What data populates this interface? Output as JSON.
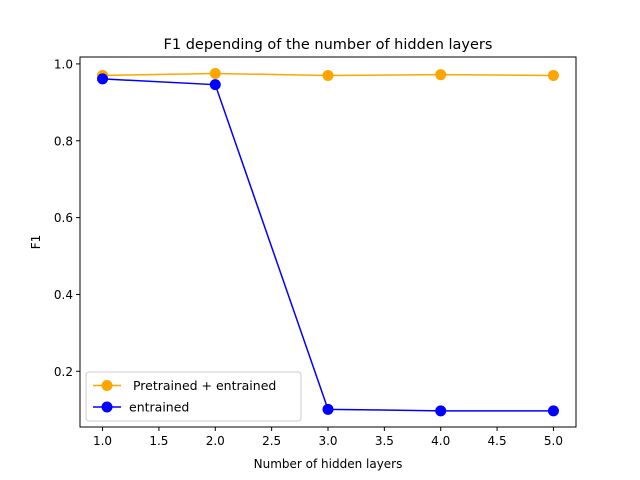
{
  "chart_data": {
    "type": "line",
    "title": "F1 depending of the number of hidden layers",
    "xlabel": "Number of hidden layers",
    "ylabel": "F1",
    "xlim": [
      0.8,
      5.2
    ],
    "ylim": [
      0.055,
      1.018
    ],
    "xticks": [
      1.0,
      1.5,
      2.0,
      2.5,
      3.0,
      3.5,
      4.0,
      4.5,
      5.0
    ],
    "xtick_labels": [
      "1.0",
      "1.5",
      "2.0",
      "2.5",
      "3.0",
      "3.5",
      "4.0",
      "4.5",
      "5.0"
    ],
    "yticks": [
      0.2,
      0.4,
      0.6,
      0.8,
      1.0
    ],
    "ytick_labels": [
      "0.2",
      "0.4",
      "0.6",
      "0.8",
      "1.0"
    ],
    "grid": false,
    "legend_position": "lower-left",
    "x": [
      1,
      2,
      3,
      4,
      5
    ],
    "series": [
      {
        "name": " Pretrained + entrained",
        "color": "#ffa500",
        "marker": "circle",
        "values": [
          0.97,
          0.975,
          0.97,
          0.972,
          0.97
        ]
      },
      {
        "name": "entrained",
        "color": "#0000ff",
        "marker": "circle",
        "values": [
          0.961,
          0.946,
          0.101,
          0.097,
          0.097
        ]
      }
    ]
  }
}
